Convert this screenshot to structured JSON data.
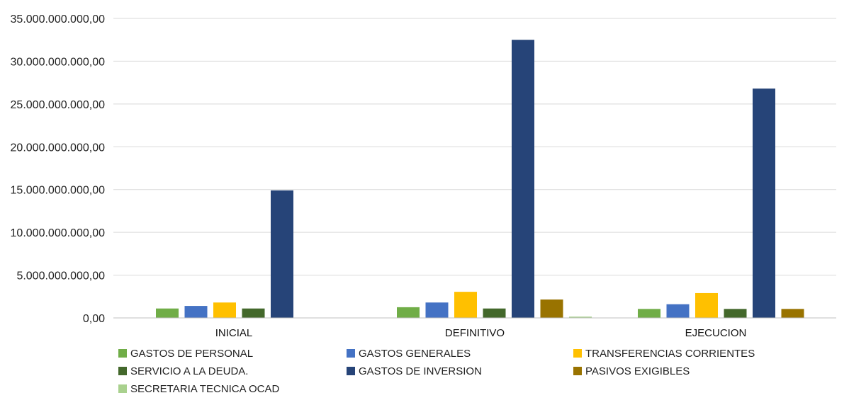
{
  "chart_data": {
    "type": "bar",
    "title": "",
    "xlabel": "",
    "ylabel": "",
    "categories": [
      "INICIAL",
      "DEFINITIVO",
      "EJECUCION"
    ],
    "ylim": [
      0,
      35000000000
    ],
    "yticks": [
      0,
      5000000000,
      10000000000,
      15000000000,
      20000000000,
      25000000000,
      30000000000,
      35000000000
    ],
    "ytick_labels": [
      "0,00",
      "5.000.000.000,00",
      "10.000.000.000,00",
      "15.000.000.000,00",
      "20.000.000.000,00",
      "25.000.000.000,00",
      "30.000.000.000,00",
      "35.000.000.000,00"
    ],
    "grid": true,
    "legend_position": "bottom",
    "series": [
      {
        "name": "GASTOS DE PERSONAL",
        "color": "#70ad47",
        "values": [
          1100000000,
          1250000000,
          1050000000
        ]
      },
      {
        "name": "GASTOS GENERALES",
        "color": "#4472c4",
        "values": [
          1400000000,
          1800000000,
          1600000000
        ]
      },
      {
        "name": "TRANSFERENCIAS CORRIENTES",
        "color": "#ffc000",
        "values": [
          1800000000,
          3050000000,
          2900000000
        ]
      },
      {
        "name": "SERVICIO  A LA  DEUDA.",
        "color": "#43682b",
        "values": [
          1100000000,
          1100000000,
          1050000000
        ]
      },
      {
        "name": "GASTOS DE INVERSION",
        "color": "#264478",
        "values": [
          14900000000,
          32500000000,
          26800000000
        ]
      },
      {
        "name": "PASIVOS EXIGIBLES",
        "color": "#997300",
        "values": [
          0,
          2150000000,
          1050000000
        ]
      },
      {
        "name": "SECRETARIA TECNICA OCAD",
        "color": "#a9d18e",
        "values": [
          0,
          150000000,
          0
        ]
      }
    ]
  }
}
